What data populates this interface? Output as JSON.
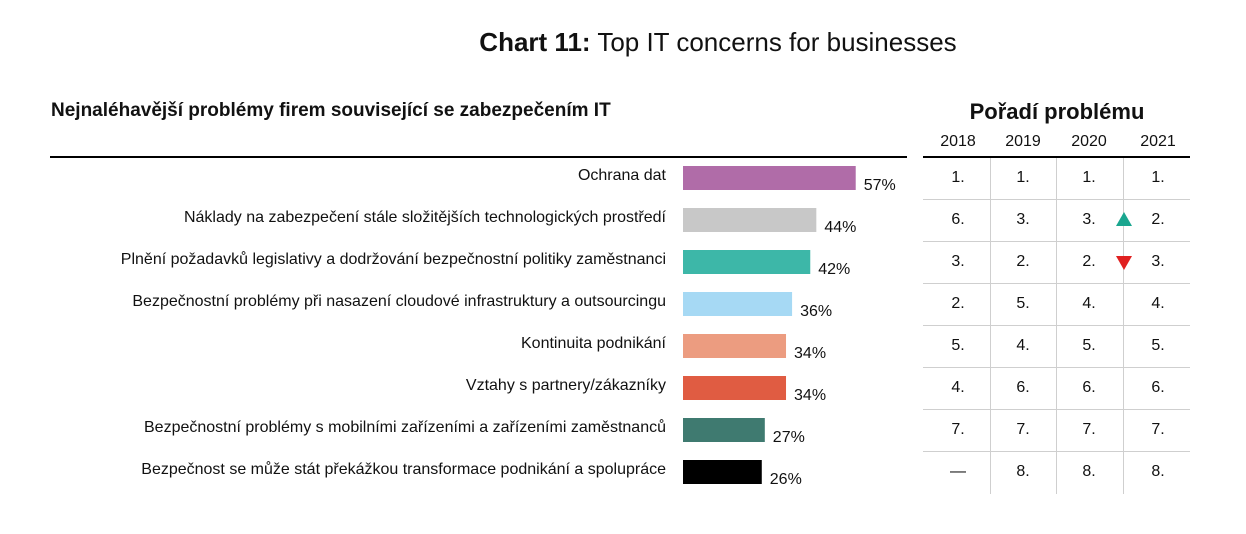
{
  "title": {
    "bold": "Chart 11:",
    "rest": " Top IT concerns for businesses"
  },
  "subtitle": "Nejnaléhavější problémy firem související se zabezpečením IT",
  "rank_table": {
    "title": "Pořadí problému",
    "years": [
      "2018",
      "2019",
      "2020",
      "2021"
    ],
    "rows": [
      [
        "1.",
        "1.",
        "1.",
        "1."
      ],
      [
        "6.",
        "3.",
        "3.",
        "2."
      ],
      [
        "3.",
        "2.",
        "2.",
        "3."
      ],
      [
        "2.",
        "5.",
        "4.",
        "4."
      ],
      [
        "5.",
        "4.",
        "5.",
        "5."
      ],
      [
        "4.",
        "6.",
        "6.",
        "6."
      ],
      [
        "7.",
        "7.",
        "7.",
        "7."
      ],
      [
        "—",
        "8.",
        "8.",
        "8."
      ]
    ],
    "indicators": [
      {
        "row": 1,
        "direction": "up",
        "color": "#1aa68f",
        "icon": "triangle-up-icon"
      },
      {
        "row": 2,
        "direction": "down",
        "color": "#e02020",
        "icon": "triangle-down-icon"
      }
    ]
  },
  "chart_data": {
    "type": "bar",
    "orientation": "horizontal",
    "title": "Chart 11: Top IT concerns for businesses",
    "subtitle": "Nejnaléhavější problémy firem související se zabezpečením IT",
    "categories": [
      "Ochrana dat",
      "Náklady na zabezpečení stále složitějších technologických prostředí",
      "Plnění požadavků legislativy a dodržování bezpečnostní politiky zaměstnanci",
      "Bezpečnostní problémy při nasazení cloudové infrastruktury a outsourcingu",
      "Kontinuita podnikání",
      "Vztahy s partnery/zákazníky",
      "Bezpečnostní problémy s mobilními zařízeními a zařízeními zaměstnanců",
      "Bezpečnost se může stát překážkou transformace podnikání a spolupráce"
    ],
    "values": [
      57,
      44,
      42,
      36,
      34,
      34,
      27,
      26
    ],
    "value_labels": [
      "57%",
      "44%",
      "42%",
      "36%",
      "34%",
      "34%",
      "27%",
      "26%"
    ],
    "colors": [
      "#b06ca8",
      "#c8c8c8",
      "#3db7a8",
      "#a6d9f4",
      "#ec9c80",
      "#e05c42",
      "#3f7a70",
      "#000000"
    ],
    "xlim": [
      0,
      100
    ],
    "unit": "%"
  }
}
